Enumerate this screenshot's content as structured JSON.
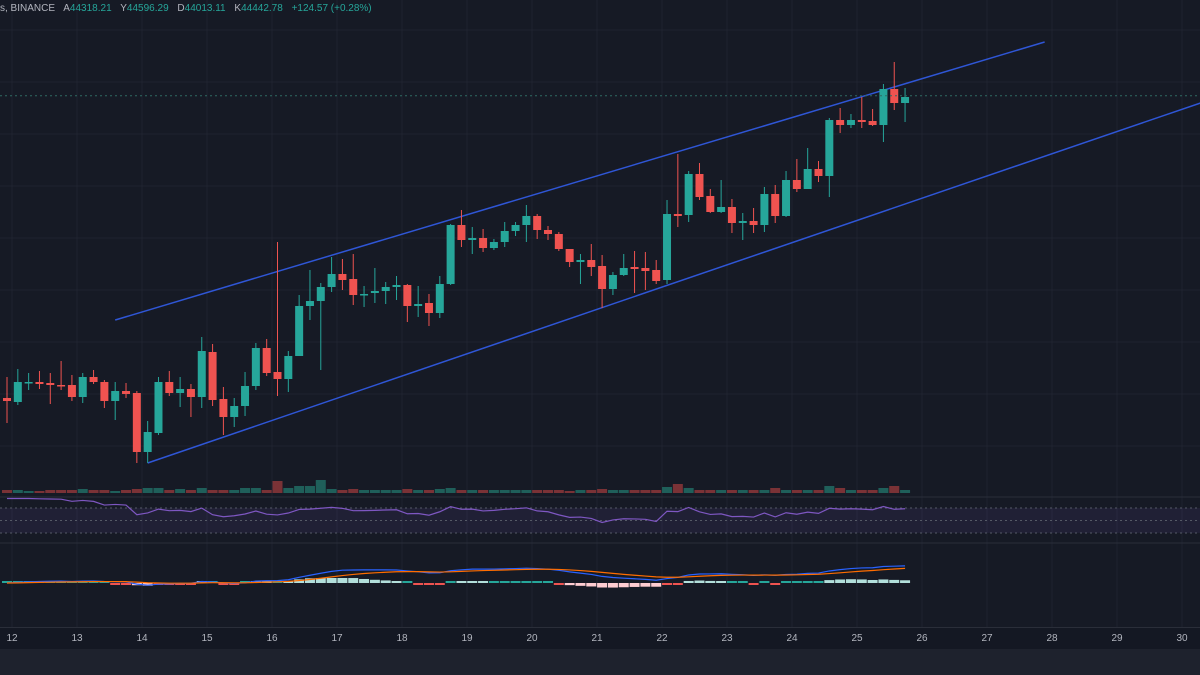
{
  "legend": {
    "symbol_suffix": "s, BINANCE",
    "open_label": "A",
    "open": "44318.21",
    "high_label": "Y",
    "high": "44596.29",
    "low_label": "D",
    "low": "44013.11",
    "close_label": "K",
    "close": "44442.78",
    "change": "+124.57 (+0.28%)"
  },
  "colors": {
    "background": "#161a25",
    "up": "#26a69a",
    "down": "#ef5350",
    "channel": "#2f56d6",
    "rsi": "#7e57c2",
    "macd": "#2962ff",
    "signal": "#ff6d00"
  },
  "x_axis": {
    "ticks": [
      "12",
      "13",
      "14",
      "15",
      "16",
      "17",
      "18",
      "19",
      "20",
      "21",
      "22",
      "23",
      "24",
      "25",
      "26",
      "27",
      "28",
      "29",
      "30"
    ]
  },
  "chart_data": {
    "type": "candlestick",
    "title": "BINANCE",
    "xlabel": "",
    "ylabel": "",
    "candle_interval": "4h",
    "ohlc": [
      [
        41420,
        41630,
        41170,
        41390
      ],
      [
        41380,
        41710,
        41350,
        41580
      ],
      [
        41570,
        41670,
        41500,
        41580
      ],
      [
        41580,
        41690,
        41510,
        41560
      ],
      [
        41570,
        41670,
        41360,
        41550
      ],
      [
        41550,
        41790,
        41500,
        41540
      ],
      [
        41550,
        41650,
        41390,
        41430
      ],
      [
        41430,
        41670,
        41370,
        41630
      ],
      [
        41630,
        41700,
        41560,
        41580
      ],
      [
        41580,
        41600,
        41320,
        41390
      ],
      [
        41390,
        41580,
        41200,
        41490
      ],
      [
        41490,
        41570,
        41420,
        41460
      ],
      [
        41470,
        41490,
        40770,
        40880
      ],
      [
        40880,
        41190,
        40770,
        41080
      ],
      [
        41070,
        41630,
        41050,
        41580
      ],
      [
        41580,
        41690,
        41440,
        41470
      ],
      [
        41470,
        41630,
        41330,
        41510
      ],
      [
        41510,
        41560,
        41230,
        41430
      ],
      [
        41430,
        42030,
        41320,
        41890
      ],
      [
        41880,
        41960,
        41340,
        41400
      ],
      [
        41410,
        41530,
        41050,
        41230
      ],
      [
        41230,
        41420,
        41130,
        41340
      ],
      [
        41340,
        41680,
        41240,
        41540
      ],
      [
        41540,
        41970,
        41500,
        41920
      ],
      [
        41920,
        42010,
        41640,
        41670
      ],
      [
        41680,
        42980,
        41440,
        41610
      ],
      [
        41610,
        41890,
        41480,
        41840
      ],
      [
        41840,
        42450,
        41840,
        42340
      ],
      [
        42340,
        42700,
        42200,
        42390
      ],
      [
        42390,
        42570,
        41700,
        42530
      ],
      [
        42530,
        42830,
        42480,
        42660
      ],
      [
        42660,
        42810,
        42500,
        42600
      ],
      [
        42610,
        42860,
        42350,
        42450
      ],
      [
        42450,
        42540,
        42330,
        42460
      ],
      [
        42470,
        42720,
        42370,
        42490
      ],
      [
        42490,
        42580,
        42360,
        42530
      ],
      [
        42530,
        42640,
        42400,
        42550
      ],
      [
        42550,
        42560,
        42180,
        42340
      ],
      [
        42340,
        42540,
        42230,
        42360
      ],
      [
        42370,
        42460,
        42140,
        42270
      ],
      [
        42270,
        42640,
        42220,
        42560
      ],
      [
        42560,
        43160,
        42550,
        43150
      ],
      [
        43150,
        43300,
        42930,
        43000
      ],
      [
        43000,
        43130,
        42860,
        43020
      ],
      [
        43020,
        43110,
        42880,
        42920
      ],
      [
        42920,
        43010,
        42900,
        42980
      ],
      [
        42980,
        43180,
        42930,
        43090
      ],
      [
        43090,
        43180,
        43040,
        43150
      ],
      [
        43150,
        43350,
        42980,
        43240
      ],
      [
        43240,
        43260,
        43010,
        43100
      ],
      [
        43100,
        43140,
        43000,
        43060
      ],
      [
        43060,
        43080,
        42890,
        42910
      ],
      [
        42910,
        42910,
        42730,
        42780
      ],
      [
        42780,
        42860,
        42560,
        42800
      ],
      [
        42800,
        42960,
        42640,
        42730
      ],
      [
        42740,
        42850,
        42320,
        42510
      ],
      [
        42510,
        42680,
        42450,
        42650
      ],
      [
        42650,
        42860,
        42640,
        42720
      ],
      [
        42730,
        42890,
        42470,
        42710
      ],
      [
        42720,
        42880,
        42500,
        42690
      ],
      [
        42700,
        42800,
        42560,
        42590
      ],
      [
        42600,
        43400,
        42560,
        43260
      ],
      [
        43260,
        43860,
        43130,
        43240
      ],
      [
        43250,
        43690,
        43180,
        43660
      ],
      [
        43660,
        43770,
        43400,
        43430
      ],
      [
        43440,
        43510,
        43270,
        43280
      ],
      [
        43280,
        43600,
        43270,
        43330
      ],
      [
        43330,
        43410,
        43070,
        43170
      ],
      [
        43170,
        43270,
        43000,
        43190
      ],
      [
        43190,
        43320,
        43070,
        43150
      ],
      [
        43150,
        43530,
        43080,
        43460
      ],
      [
        43460,
        43550,
        43170,
        43240
      ],
      [
        43240,
        43690,
        43230,
        43600
      ],
      [
        43600,
        43810,
        43480,
        43510
      ],
      [
        43510,
        43920,
        43510,
        43710
      ],
      [
        43710,
        43790,
        43580,
        43640
      ],
      [
        43640,
        44220,
        43430,
        44200
      ],
      [
        44200,
        44320,
        44070,
        44150
      ],
      [
        44150,
        44260,
        44120,
        44200
      ],
      [
        44200,
        44430,
        44120,
        44180
      ],
      [
        44190,
        44310,
        44140,
        44150
      ],
      [
        44150,
        44560,
        43980,
        44510
      ],
      [
        44510,
        44780,
        44300,
        44370
      ],
      [
        44370,
        44520,
        44180,
        44430
      ]
    ],
    "volume": [
      3,
      3,
      2,
      2,
      3,
      3,
      3,
      4,
      3,
      3,
      2,
      3,
      4,
      5,
      5,
      3,
      4,
      3,
      5,
      3,
      3,
      3,
      5,
      5,
      3,
      12,
      5,
      7,
      7,
      13,
      4,
      3,
      4,
      3,
      3,
      3,
      3,
      4,
      3,
      3,
      4,
      5,
      3,
      3,
      3,
      3,
      3,
      3,
      3,
      3,
      3,
      3,
      2,
      3,
      3,
      4,
      3,
      3,
      3,
      3,
      3,
      6,
      9,
      5,
      3,
      3,
      3,
      3,
      3,
      3,
      3,
      5,
      3,
      3,
      3,
      3,
      7,
      5,
      3,
      3,
      3,
      5,
      7,
      3
    ],
    "rsi_bands": [
      70,
      50,
      30
    ],
    "channel": {
      "upper": [
        [
          10,
          42200
        ],
        [
          95.9,
          44980
        ]
      ],
      "lower": [
        [
          13,
          40770
        ],
        [
          110.3,
          44370
        ]
      ]
    },
    "last_price": 44442.78,
    "x_ticks": [
      "12",
      "13",
      "14",
      "15",
      "16",
      "17",
      "18",
      "19",
      "20",
      "21",
      "22",
      "23",
      "24",
      "25",
      "26",
      "27",
      "28",
      "29",
      "30"
    ],
    "candles_per_day": 6
  }
}
